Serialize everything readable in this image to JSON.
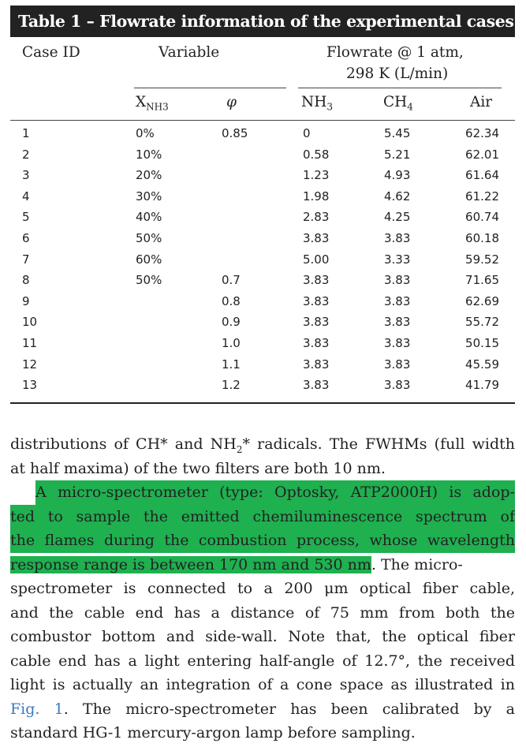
{
  "table": {
    "title": "Table 1 – Flowrate information of the experimental cases.",
    "headers": {
      "case_id": "Case ID",
      "variable": "Variable",
      "flowrate_line1": "Flowrate @ 1 atm,",
      "flowrate_line2": "298 K (L/min)",
      "x_nh3_base": "X",
      "x_nh3_sub": "NH3",
      "phi": "φ",
      "nh3": "NH",
      "nh3_sub": "3",
      "ch4": "CH",
      "ch4_sub": "4",
      "air": "Air"
    },
    "rows": [
      {
        "id": "1",
        "x": "0%",
        "phi": "0.85",
        "nh3": "0",
        "ch4": "5.45",
        "air": "62.34"
      },
      {
        "id": "2",
        "x": "10%",
        "phi": "",
        "nh3": "0.58",
        "ch4": "5.21",
        "air": "62.01"
      },
      {
        "id": "3",
        "x": "20%",
        "phi": "",
        "nh3": "1.23",
        "ch4": "4.93",
        "air": "61.64"
      },
      {
        "id": "4",
        "x": "30%",
        "phi": "",
        "nh3": "1.98",
        "ch4": "4.62",
        "air": "61.22"
      },
      {
        "id": "5",
        "x": "40%",
        "phi": "",
        "nh3": "2.83",
        "ch4": "4.25",
        "air": "60.74"
      },
      {
        "id": "6",
        "x": "50%",
        "phi": "",
        "nh3": "3.83",
        "ch4": "3.83",
        "air": "60.18"
      },
      {
        "id": "7",
        "x": "60%",
        "phi": "",
        "nh3": "5.00",
        "ch4": "3.33",
        "air": "59.52"
      },
      {
        "id": "8",
        "x": "50%",
        "phi": "0.7",
        "nh3": "3.83",
        "ch4": "3.83",
        "air": "71.65"
      },
      {
        "id": "9",
        "x": "",
        "phi": "0.8",
        "nh3": "3.83",
        "ch4": "3.83",
        "air": "62.69"
      },
      {
        "id": "10",
        "x": "",
        "phi": "0.9",
        "nh3": "3.83",
        "ch4": "3.83",
        "air": "55.72"
      },
      {
        "id": "11",
        "x": "",
        "phi": "1.0",
        "nh3": "3.83",
        "ch4": "3.83",
        "air": "50.15"
      },
      {
        "id": "12",
        "x": "",
        "phi": "1.1",
        "nh3": "3.83",
        "ch4": "3.83",
        "air": "45.59"
      },
      {
        "id": "13",
        "x": "",
        "phi": "1.2",
        "nh3": "3.83",
        "ch4": "3.83",
        "air": "41.79"
      }
    ]
  },
  "text": {
    "p1_l1_a": "distributions of CH* and NH",
    "p1_l1_sub": "2",
    "p1_l1_b": "* radicals. The FWHMs (full width",
    "p1_l2": "at half maxima) of the two filters are both 10 nm.",
    "p2_l1": "A micro-spectrometer (type: Optosky, ATP2000H) is adop-",
    "p2_l2": "ted to sample the emitted chemiluminescence spectrum of",
    "p2_l3": "the flames during the combustion process, whose wavelength",
    "p2_l4_hl": "response range is between 170 nm and 530 nm",
    "p2_l4_rest": ". The micro-",
    "p2_l5": "spectrometer is connected to a 200 μm optical fiber cable,",
    "p2_l6": "and the cable end has a distance of 75 mm from both the",
    "p2_l7": "combustor bottom and side-wall. Note that, the optical fiber",
    "p2_l8": "cable end has a light entering half-angle of 12.7°, the received",
    "p2_l9": "light is actually an integration of a cone space as illustrated in",
    "p2_l10_link": "Fig. 1",
    "p2_l10_rest": ". The micro-spectrometer has been calibrated by a",
    "p2_l11": "standard HG-1 mercury-argon lamp before sampling."
  },
  "colors": {
    "highlight": "#1fb050",
    "link": "#3a79c2",
    "title_bar": "#222222"
  }
}
